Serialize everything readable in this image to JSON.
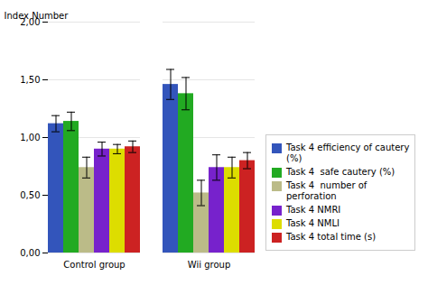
{
  "chart_data": {
    "type": "bar",
    "categories": [
      "Control group",
      "Wii group"
    ],
    "series": [
      {
        "name": "Task 4 efficiency of cautery\n(%)",
        "color": "#3355bb",
        "values": [
          1.12,
          1.46
        ],
        "errors": [
          0.07,
          0.13
        ]
      },
      {
        "name": "Task 4  safe cautery (%)",
        "color": "#22aa22",
        "values": [
          1.14,
          1.38
        ],
        "errors": [
          0.08,
          0.14
        ]
      },
      {
        "name": "Task 4  number of\nperforation",
        "color": "#bbbb88",
        "values": [
          0.74,
          0.52
        ],
        "errors": [
          0.09,
          0.11
        ]
      },
      {
        "name": "Task 4 NMRI",
        "color": "#7722cc",
        "values": [
          0.9,
          0.74
        ],
        "errors": [
          0.06,
          0.11
        ]
      },
      {
        "name": "Task 4 NMLI",
        "color": "#dddd00",
        "values": [
          0.9,
          0.74
        ],
        "errors": [
          0.04,
          0.09
        ]
      },
      {
        "name": "Task 4 total time (s)",
        "color": "#cc2222",
        "values": [
          0.92,
          0.8
        ],
        "errors": [
          0.05,
          0.07
        ]
      }
    ],
    "ylabel": "Index Number",
    "ylim": [
      0.0,
      2.0
    ],
    "yticks": [
      {
        "value": 0.0,
        "label": "0,00"
      },
      {
        "value": 0.5,
        "label": "0,50"
      },
      {
        "value": 1.0,
        "label": "1,00"
      },
      {
        "value": 1.5,
        "label": "1,50"
      },
      {
        "value": 2.0,
        "label": "2,00"
      }
    ],
    "grid": true,
    "legend": "lower right"
  }
}
